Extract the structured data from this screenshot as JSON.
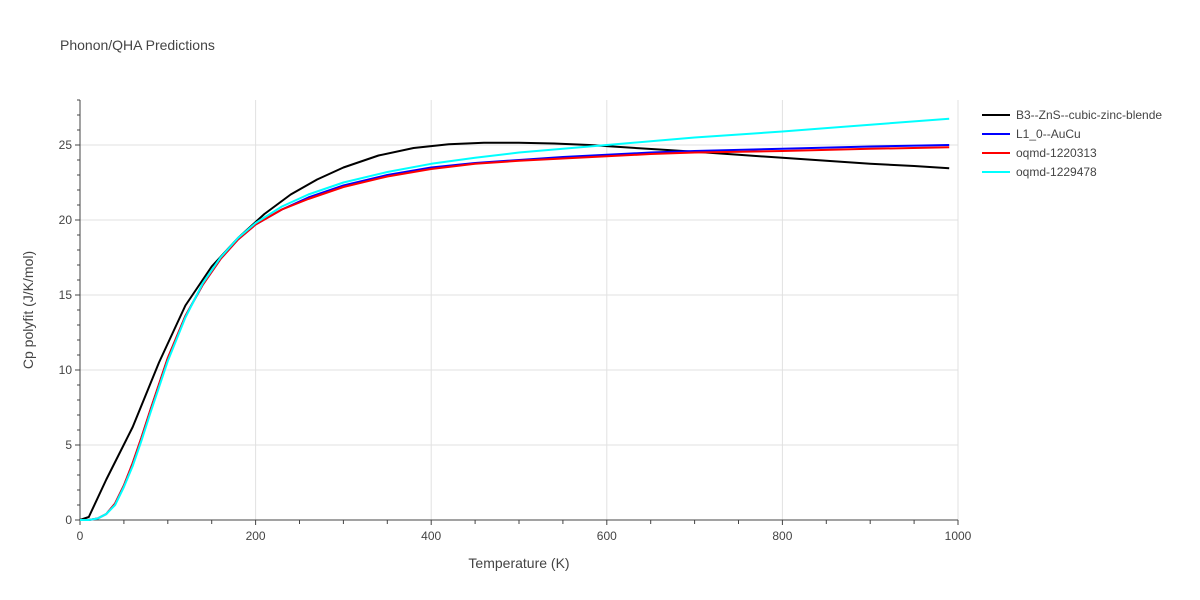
{
  "chart_data": {
    "type": "line",
    "title": "Phonon/QHA Predictions",
    "xlabel": "Temperature (K)",
    "ylabel": "Cp polyfit (J/K/mol)",
    "xlim": [
      0,
      1000
    ],
    "ylim": [
      0,
      28
    ],
    "xticks": [
      0,
      200,
      400,
      600,
      800,
      1000
    ],
    "yticks": [
      0,
      5,
      10,
      15,
      20,
      25
    ],
    "grid": true,
    "legend_position": "right-top",
    "series": [
      {
        "name": "B3--ZnS--cubic-zinc-blende",
        "color": "#000000",
        "x": [
          0,
          10,
          30,
          60,
          90,
          120,
          150,
          180,
          210,
          240,
          270,
          300,
          340,
          380,
          420,
          460,
          500,
          540,
          580,
          620,
          660,
          700,
          750,
          800,
          850,
          900,
          950,
          990
        ],
        "y": [
          0,
          0.2,
          2.7,
          6.2,
          10.5,
          14.3,
          16.9,
          18.8,
          20.4,
          21.7,
          22.7,
          23.5,
          24.3,
          24.8,
          25.05,
          25.15,
          25.15,
          25.1,
          25.0,
          24.85,
          24.7,
          24.55,
          24.35,
          24.15,
          23.95,
          23.75,
          23.6,
          23.45
        ]
      },
      {
        "name": "L1_0--AuCu",
        "color": "#0000ff",
        "x": [
          0,
          10,
          20,
          30,
          40,
          50,
          60,
          70,
          80,
          100,
          120,
          140,
          160,
          180,
          200,
          230,
          260,
          300,
          350,
          400,
          450,
          500,
          550,
          600,
          650,
          700,
          800,
          900,
          990
        ],
        "y": [
          0,
          0,
          0.1,
          0.4,
          1.1,
          2.3,
          3.8,
          5.5,
          7.3,
          10.8,
          13.6,
          15.7,
          17.4,
          18.7,
          19.7,
          20.7,
          21.5,
          22.3,
          23.0,
          23.5,
          23.8,
          24.0,
          24.2,
          24.35,
          24.5,
          24.6,
          24.75,
          24.9,
          25.0
        ]
      },
      {
        "name": "oqmd-1220313",
        "color": "#ff0000",
        "x": [
          0,
          10,
          20,
          30,
          40,
          50,
          60,
          70,
          80,
          100,
          120,
          140,
          160,
          180,
          200,
          230,
          260,
          300,
          350,
          400,
          450,
          500,
          550,
          600,
          650,
          700,
          800,
          900,
          990
        ],
        "y": [
          0,
          0,
          0.1,
          0.4,
          1.1,
          2.3,
          3.8,
          5.5,
          7.3,
          10.8,
          13.6,
          15.7,
          17.4,
          18.7,
          19.7,
          20.7,
          21.4,
          22.2,
          22.9,
          23.4,
          23.75,
          23.95,
          24.1,
          24.25,
          24.4,
          24.5,
          24.6,
          24.75,
          24.85
        ]
      },
      {
        "name": "oqmd-1229478",
        "color": "#00ffff",
        "x": [
          0,
          10,
          20,
          30,
          40,
          50,
          60,
          70,
          80,
          100,
          120,
          140,
          160,
          180,
          200,
          230,
          260,
          300,
          350,
          400,
          450,
          500,
          550,
          600,
          650,
          700,
          800,
          900,
          990
        ],
        "y": [
          0,
          0,
          0.1,
          0.4,
          1.0,
          2.2,
          3.6,
          5.3,
          7.1,
          10.6,
          13.5,
          15.8,
          17.5,
          18.8,
          19.8,
          20.9,
          21.7,
          22.5,
          23.2,
          23.75,
          24.15,
          24.5,
          24.75,
          25.0,
          25.25,
          25.5,
          25.9,
          26.35,
          26.75
        ]
      }
    ]
  }
}
